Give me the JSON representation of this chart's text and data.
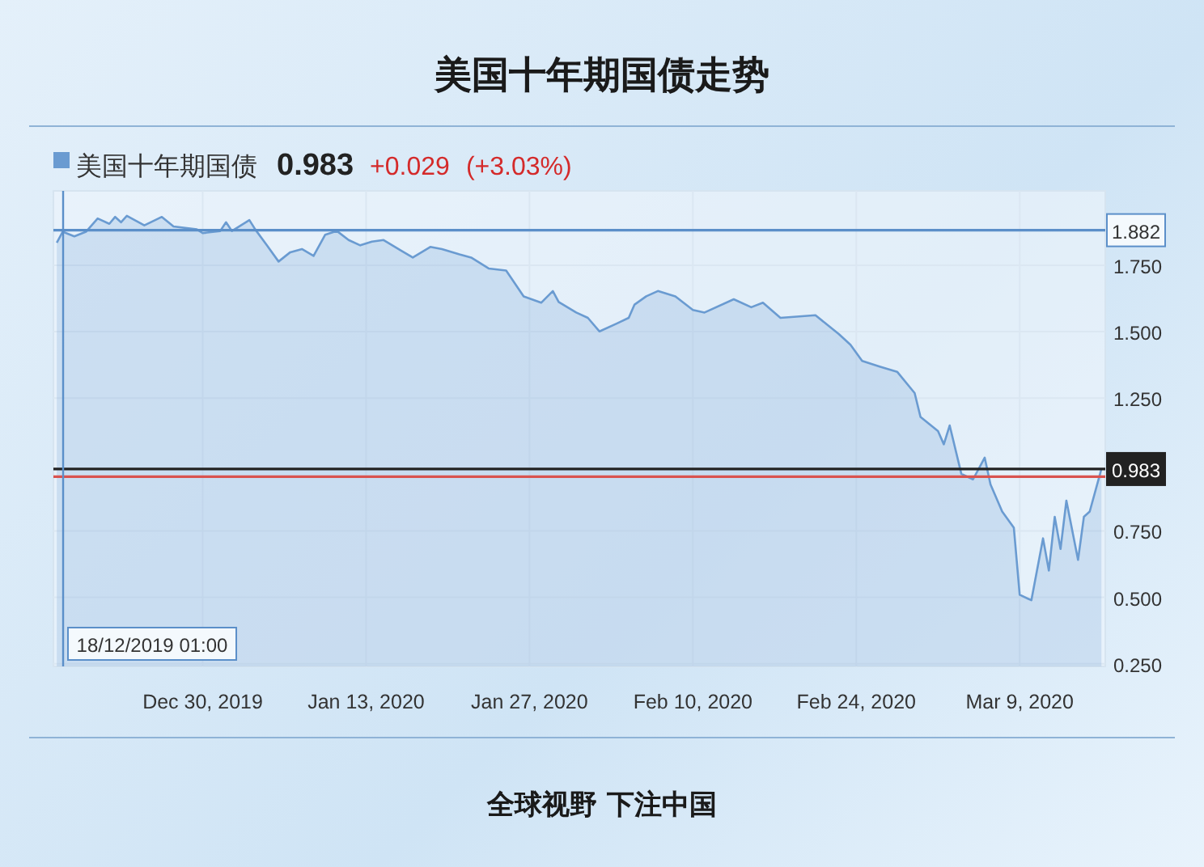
{
  "chart_data": {
    "type": "area",
    "title": "美国十年期国债走势",
    "x": [
      "2019-12-17T12:00",
      "2019-12-18T00:00",
      "2019-12-19T00:00",
      "2019-12-20T00:00",
      "2019-12-21T00:00",
      "2019-12-22T00:00",
      "2019-12-22T12:00",
      "2019-12-23T00:00",
      "2019-12-23T12:00",
      "2019-12-25T00:00",
      "2019-12-26T12:00",
      "2019-12-27T12:00",
      "2019-12-29T12:00",
      "2019-12-30T00:00",
      "2019-12-31T12:00",
      "2020-01-01T00:00",
      "2020-01-01T12:00",
      "2020-01-03T00:00",
      "2020-01-03T12:00",
      "2020-01-04T12:00",
      "2020-01-05T12:00",
      "2020-01-06T12:00",
      "2020-01-07T12:00",
      "2020-01-08T12:00",
      "2020-01-09T12:00",
      "2020-01-10T12:00",
      "2020-01-11T12:00",
      "2020-01-12T12:00",
      "2020-01-13T12:00",
      "2020-01-14T12:00",
      "2020-01-16T00:00",
      "2020-01-17T00:00",
      "2020-01-18T12:00",
      "2020-01-19T12:00",
      "2020-01-21T00:00",
      "2020-01-22T00:00",
      "2020-01-23T12:00",
      "2020-01-25T00:00",
      "2020-01-26T12:00",
      "2020-01-28T00:00",
      "2020-01-29T00:00",
      "2020-01-29T12:00",
      "2020-01-31T00:00",
      "2020-02-01T00:00",
      "2020-02-02T00:00",
      "2020-02-03T12:00",
      "2020-02-04T12:00",
      "2020-02-05T00:00",
      "2020-02-06T00:00",
      "2020-02-07T00:00",
      "2020-02-08T12:00",
      "2020-02-10T00:00",
      "2020-02-11T00:00",
      "2020-02-13T12:00",
      "2020-02-15T00:00",
      "2020-02-16T00:00",
      "2020-02-17T12:00",
      "2020-02-20T12:00",
      "2020-02-22T12:00",
      "2020-02-23T12:00",
      "2020-02-24T12:00",
      "2020-02-26T00:00",
      "2020-02-27T12:00",
      "2020-02-29T00:00",
      "2020-02-29T12:00",
      "2020-03-02T00:00",
      "2020-03-02T12:00",
      "2020-03-03T00:00",
      "2020-03-04T00:00",
      "2020-03-05T00:00",
      "2020-03-06T00:00",
      "2020-03-06T12:00",
      "2020-03-07T12:00",
      "2020-03-08T12:00",
      "2020-03-09T00:00",
      "2020-03-10T00:00",
      "2020-03-11T00:00",
      "2020-03-11T12:00",
      "2020-03-12T00:00",
      "2020-03-12T12:00",
      "2020-03-13T00:00",
      "2020-03-14T00:00",
      "2020-03-14T12:00",
      "2020-03-15T00:00",
      "2020-03-16T00:00"
    ],
    "series": [
      {
        "name": "美国十年期国债",
        "color": "#6a9bd1",
        "values": [
          1.835,
          1.876,
          1.859,
          1.876,
          1.926,
          1.906,
          1.932,
          1.912,
          1.936,
          1.9,
          1.932,
          1.896,
          1.885,
          1.871,
          1.879,
          1.912,
          1.879,
          1.92,
          1.885,
          1.825,
          1.764,
          1.799,
          1.811,
          1.785,
          1.865,
          1.879,
          1.845,
          1.825,
          1.839,
          1.845,
          1.805,
          1.779,
          1.819,
          1.811,
          1.791,
          1.779,
          1.738,
          1.73,
          1.633,
          1.609,
          1.653,
          1.612,
          1.572,
          1.552,
          1.501,
          1.531,
          1.552,
          1.602,
          1.633,
          1.653,
          1.633,
          1.582,
          1.572,
          1.622,
          1.592,
          1.609,
          1.552,
          1.562,
          1.491,
          1.451,
          1.39,
          1.369,
          1.349,
          1.269,
          1.179,
          1.126,
          1.076,
          1.147,
          0.965,
          0.944,
          1.026,
          0.925,
          0.823,
          0.762,
          0.51,
          0.489,
          0.722,
          0.601,
          0.803,
          0.682,
          0.864,
          0.641,
          0.803,
          0.823,
          0.983
        ]
      }
    ],
    "xlim": [
      "2019-12-17T05:00",
      "2020-03-16T08:00"
    ],
    "xticks": [
      {
        "value": "2019-12-30",
        "label": "Dec 30, 2019"
      },
      {
        "value": "2020-01-13",
        "label": "Jan 13, 2020"
      },
      {
        "value": "2020-01-27",
        "label": "Jan 27, 2020"
      },
      {
        "value": "2020-02-10",
        "label": "Feb 10, 2020"
      },
      {
        "value": "2020-02-24",
        "label": "Feb 24, 2020"
      },
      {
        "value": "2020-03-09",
        "label": "Mar 9, 2020"
      }
    ],
    "ylim": [
      0.24,
      2.03
    ],
    "yticks": [
      {
        "value": 0.25,
        "label": "0.250"
      },
      {
        "value": 0.5,
        "label": "0.500"
      },
      {
        "value": 0.75,
        "label": "0.750"
      },
      {
        "value": 1.25,
        "label": "1.250"
      },
      {
        "value": 1.5,
        "label": "1.500"
      },
      {
        "value": 1.75,
        "label": "1.750"
      }
    ],
    "ref_lines": [
      {
        "axis": "y",
        "value": 1.882,
        "label": "1.882",
        "color": "#5b8fc9"
      },
      {
        "axis": "y",
        "value": 0.983,
        "label": "0.983",
        "color": "#222222"
      },
      {
        "axis": "y",
        "value": 0.954,
        "color": "#d9534f"
      },
      {
        "axis": "x",
        "value": "2019-12-18T01:00",
        "label": "18/12/2019 01:00",
        "color": "#5b8fc9"
      }
    ],
    "annotations": [
      "0.983",
      "+0.029",
      "(+3.03%)",
      "全球视野 下注中国"
    ],
    "grid": true,
    "legend": "top left"
  }
}
